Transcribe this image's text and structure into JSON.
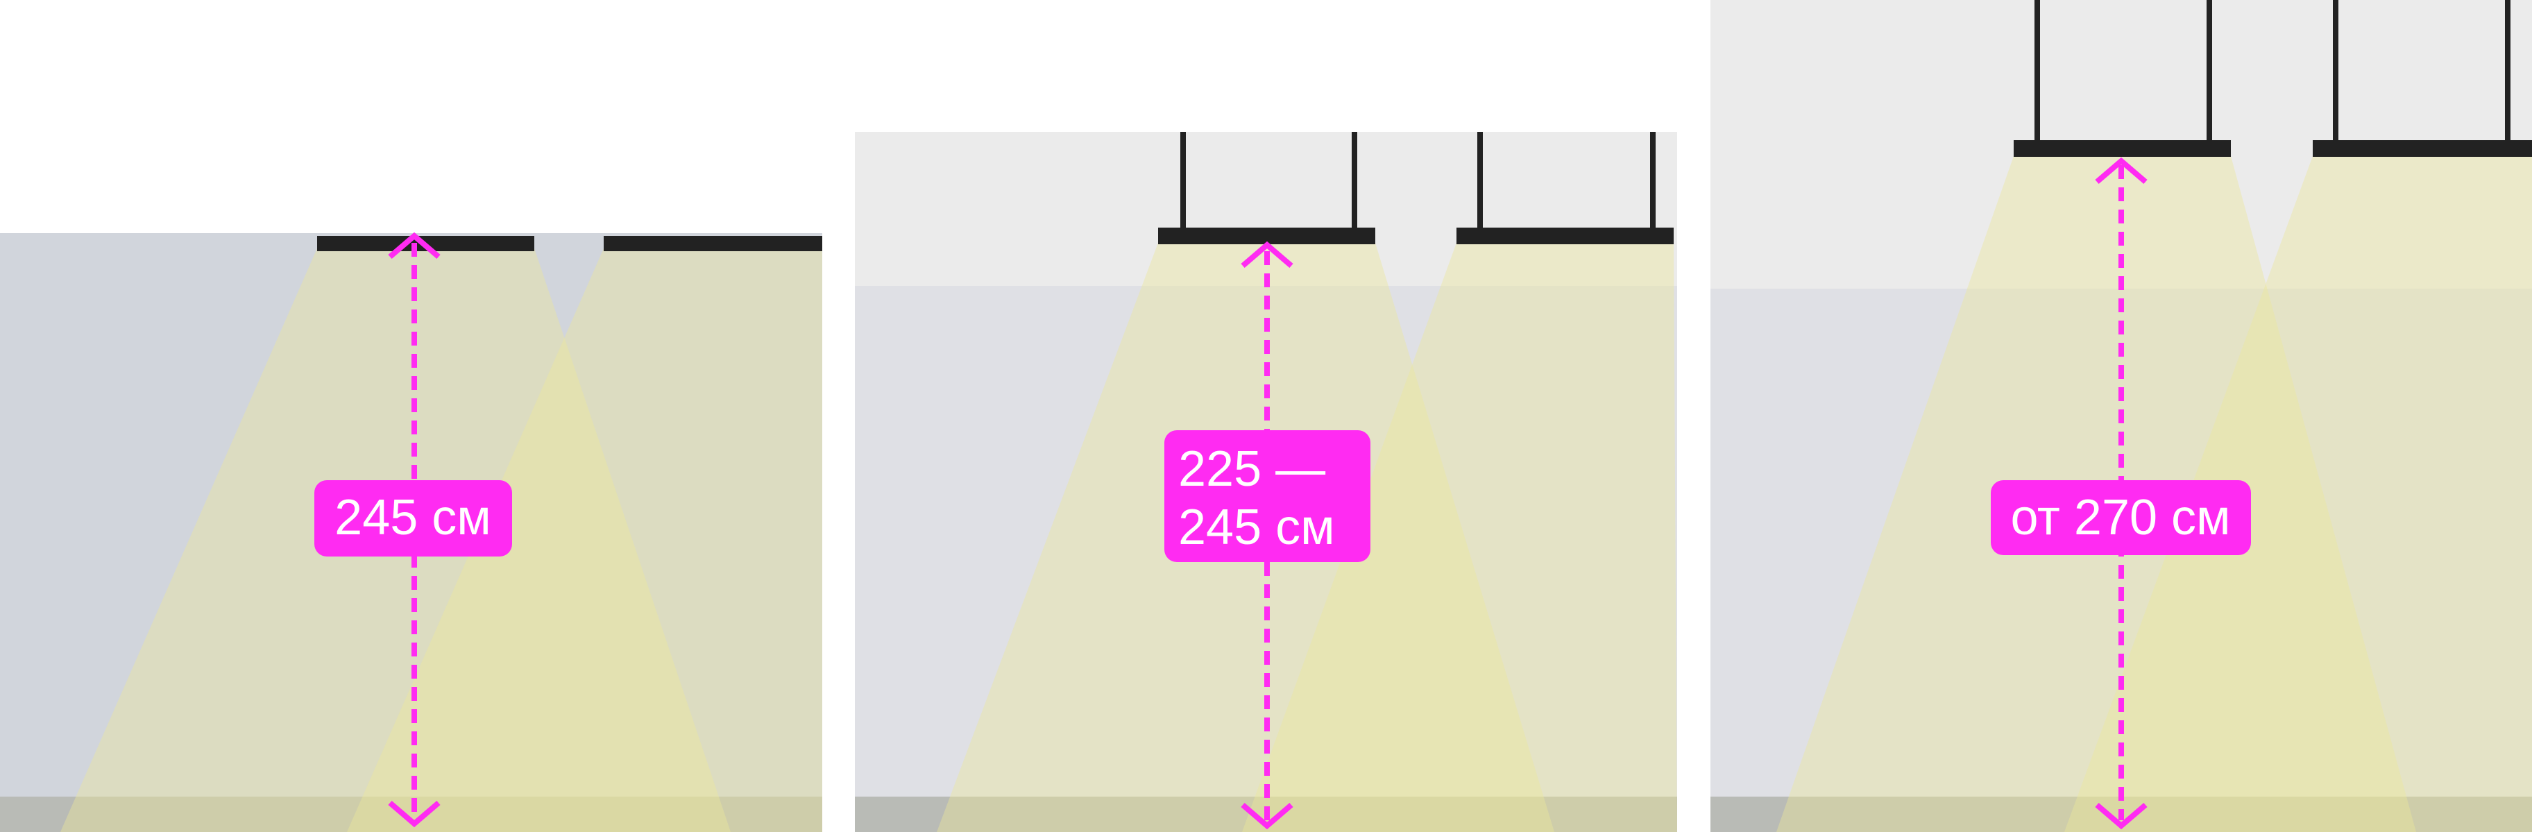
{
  "panels": [
    {
      "label_lines": [
        "245 см"
      ]
    },
    {
      "label_lines": [
        "225 —",
        "245 см"
      ]
    },
    {
      "label_lines": [
        "от 270 см"
      ]
    }
  ],
  "colors": {
    "background": "#ffffff",
    "room": "#d1d5dc",
    "upper_light": "#ebebeb",
    "lower_light": "#dfe0e5",
    "floor": "#b9bbb6",
    "beam": "#e9e696",
    "fixture": "#222222",
    "dimension": "#ff2bf2",
    "label_text": "#ffffff"
  },
  "icons": {
    "fixture": "linear-pendant-luminaire",
    "dimension": "double-arrow"
  }
}
